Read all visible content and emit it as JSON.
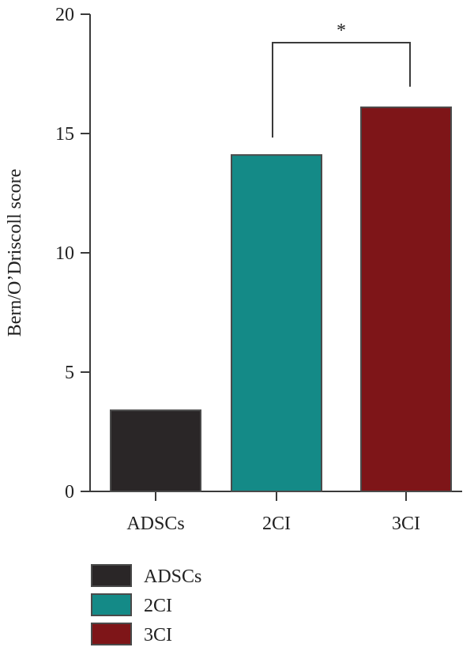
{
  "chart_data": {
    "type": "bar",
    "categories": [
      "ADSCs",
      "2CI",
      "3CI"
    ],
    "values": [
      3.4,
      14.1,
      16.1
    ],
    "colors": [
      "#2a2627",
      "#148a87",
      "#7e1518"
    ],
    "ylabel": "Bern/O’Driscoll score",
    "xlabel": "",
    "ylim": [
      0,
      20
    ],
    "yticks": [
      0,
      5,
      10,
      15,
      20
    ],
    "grid": false,
    "legend": {
      "placement": "bottom-left",
      "entries": [
        "ADSCs",
        "2CI",
        "3CI"
      ]
    },
    "annotations": [
      {
        "type": "significance-bracket",
        "from": "2CI",
        "to": "3CI",
        "label": "*"
      }
    ]
  }
}
